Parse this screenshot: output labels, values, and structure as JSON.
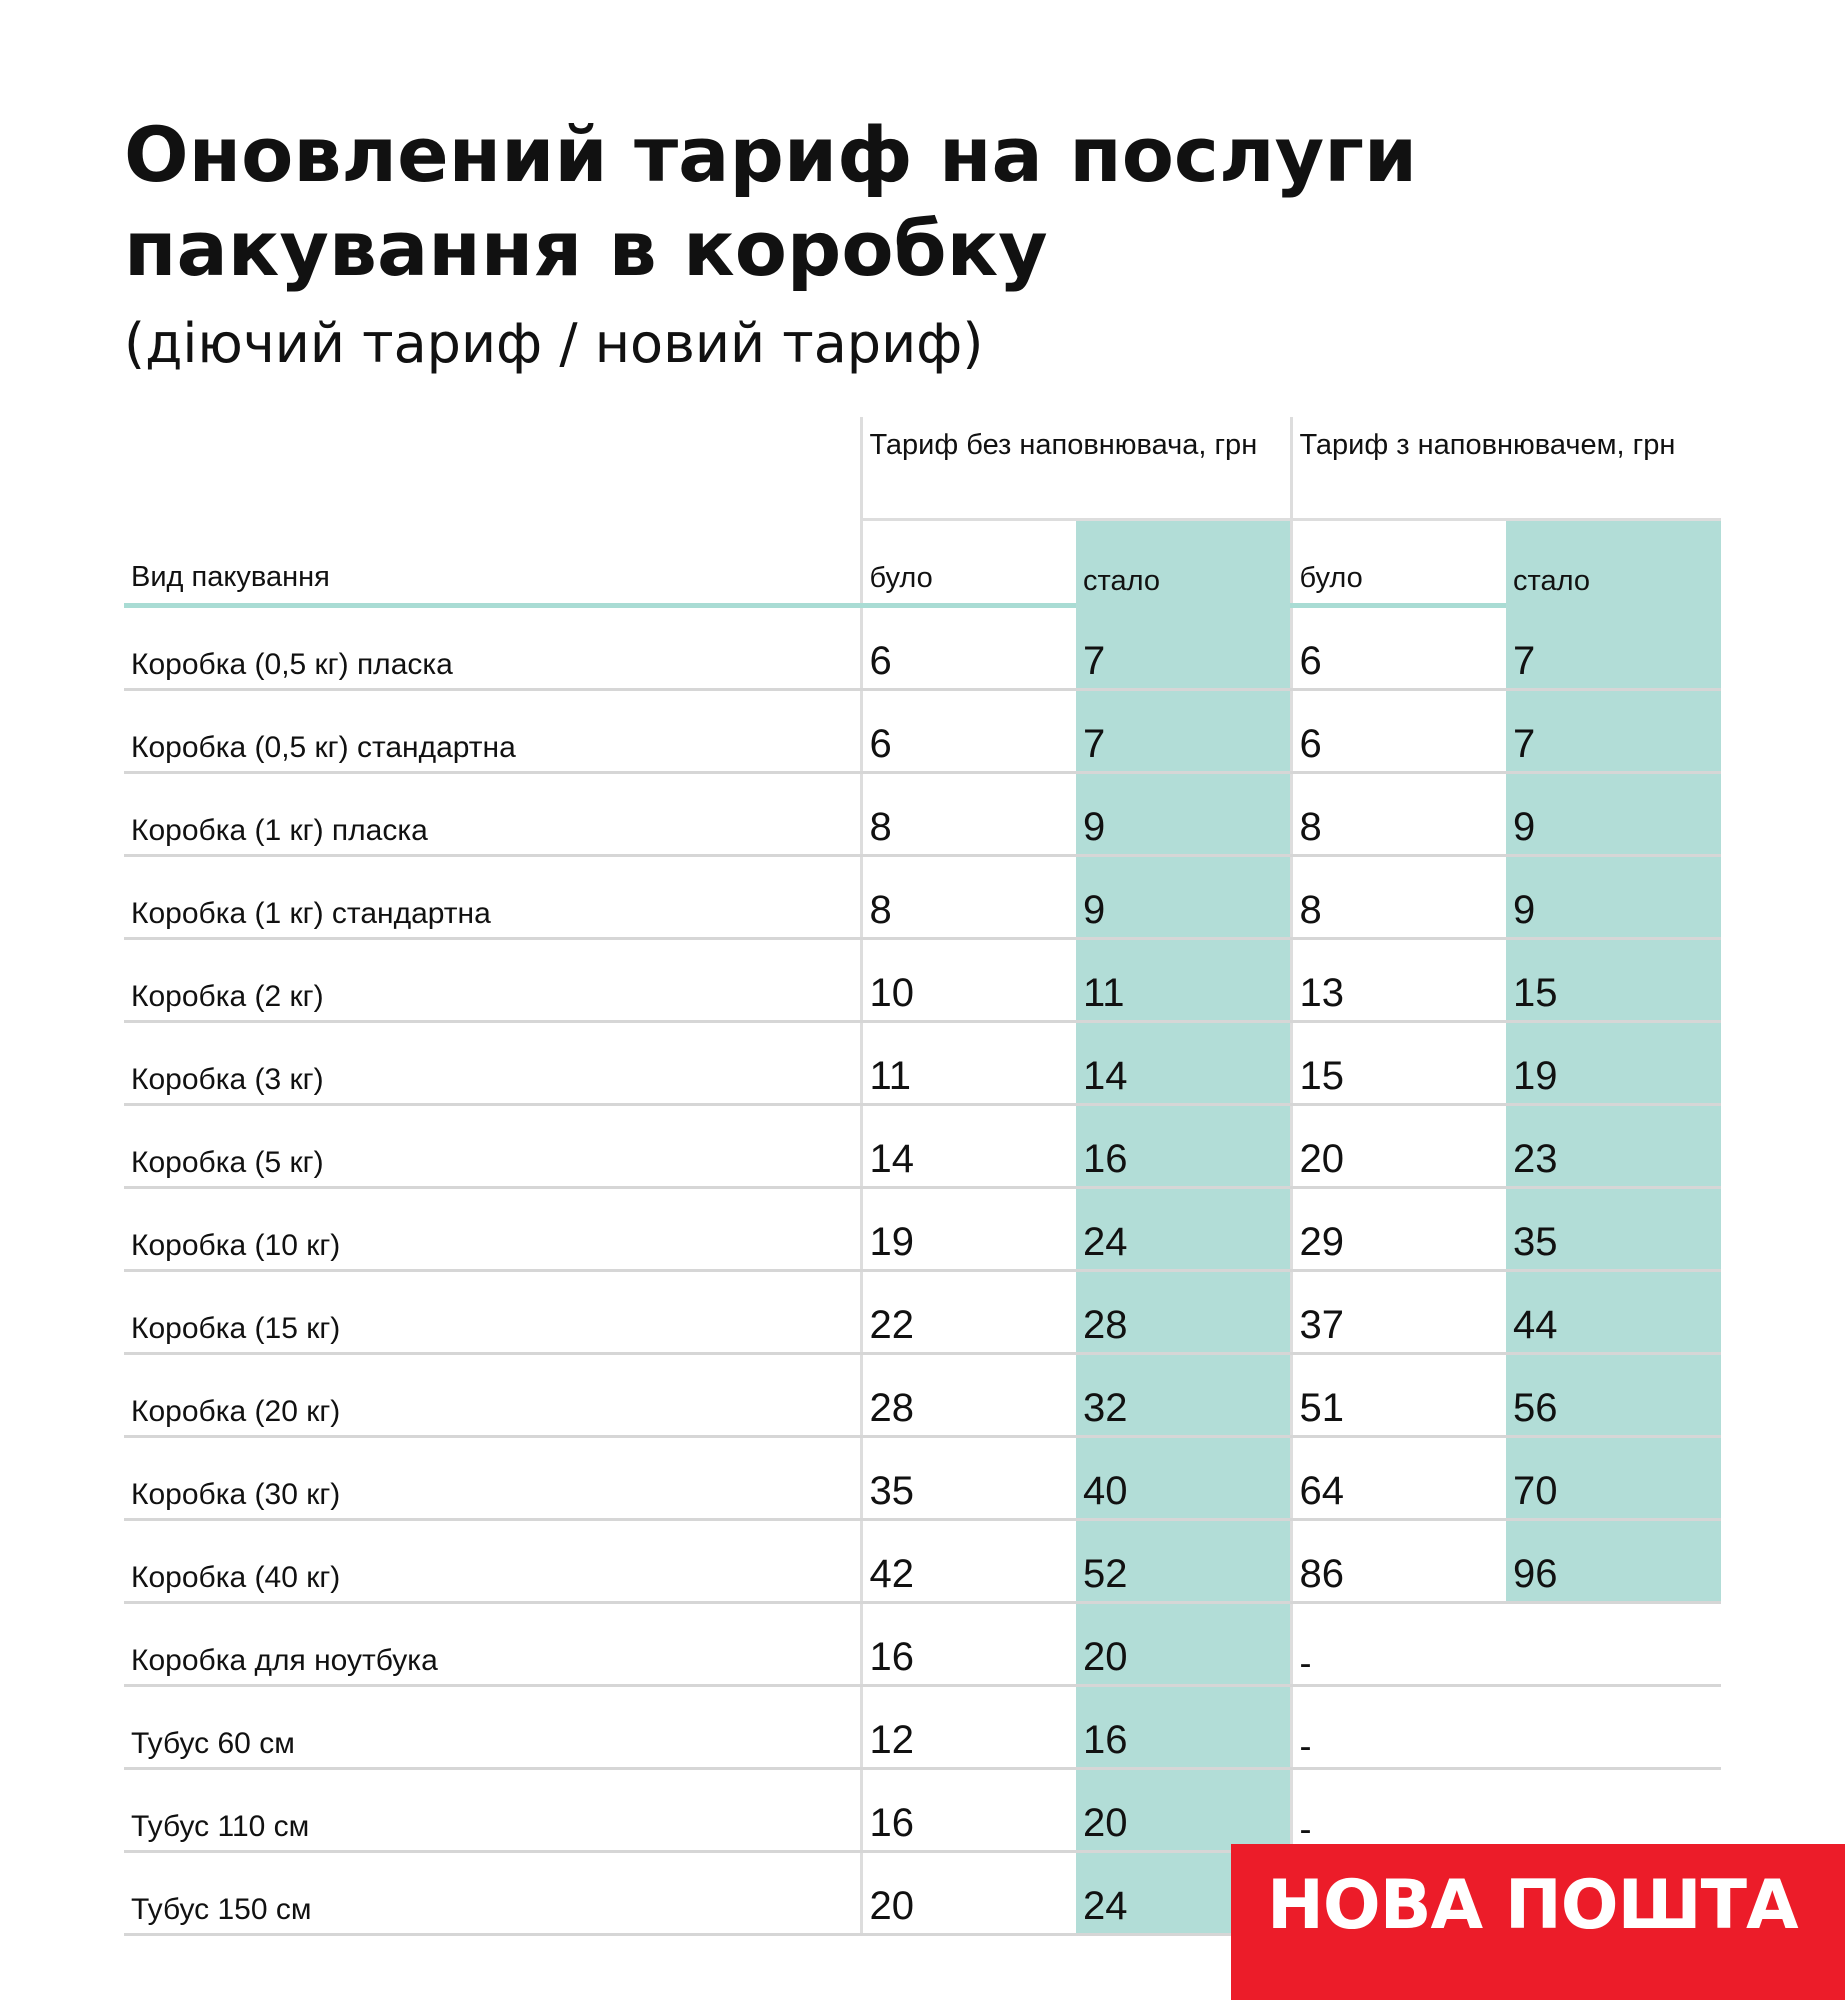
{
  "title_line1": "Оновлений тариф на послуги",
  "title_line2": "пакування в коробку",
  "subtitle": "(діючий тариф / новий тариф)",
  "table": {
    "col_label": "Вид пакування",
    "group1": "Тариф без наповнювача, грн",
    "group2": "Тариф з наповнювачем, грн",
    "was": "було",
    "now": "стало",
    "rows": [
      {
        "name": "Коробка (0,5 кг) пласка",
        "a": "6",
        "b": "7",
        "c": "6",
        "d": "7"
      },
      {
        "name": "Коробка (0,5 кг) стандартна",
        "a": "6",
        "b": "7",
        "c": "6",
        "d": "7"
      },
      {
        "name": "Коробка (1 кг) пласка",
        "a": "8",
        "b": "9",
        "c": "8",
        "d": "9"
      },
      {
        "name": "Коробка (1 кг) стандартна",
        "a": "8",
        "b": "9",
        "c": "8",
        "d": "9"
      },
      {
        "name": "Коробка (2 кг)",
        "a": "10",
        "b": "11",
        "c": "13",
        "d": "15"
      },
      {
        "name": "Коробка (3 кг)",
        "a": "11",
        "b": "14",
        "c": "15",
        "d": "19"
      },
      {
        "name": "Коробка (5 кг)",
        "a": "14",
        "b": "16",
        "c": "20",
        "d": "23"
      },
      {
        "name": "Коробка (10 кг)",
        "a": "19",
        "b": "24",
        "c": "29",
        "d": "35"
      },
      {
        "name": "Коробка (15 кг)",
        "a": "22",
        "b": "28",
        "c": "37",
        "d": "44"
      },
      {
        "name": "Коробка (20 кг)",
        "a": "28",
        "b": "32",
        "c": "51",
        "d": "56"
      },
      {
        "name": "Коробка (30 кг)",
        "a": "35",
        "b": "40",
        "c": "64",
        "d": "70"
      },
      {
        "name": "Коробка (40 кг)",
        "a": "42",
        "b": "52",
        "c": "86",
        "d": "96"
      },
      {
        "name": "Коробка для ноутбука",
        "a": "16",
        "b": "20",
        "c": "-"
      },
      {
        "name": "Тубус 60 см",
        "a": "12",
        "b": "16",
        "c": "-"
      },
      {
        "name": "Тубус 110 см",
        "a": "16",
        "b": "20",
        "c": "-"
      },
      {
        "name": "Тубус 150 см",
        "a": "20",
        "b": "24",
        "c": "-"
      }
    ]
  },
  "logo": "НОВА ПОШТА",
  "colors": {
    "accent": "#b2ddd7",
    "brand": "#ec1c29"
  }
}
